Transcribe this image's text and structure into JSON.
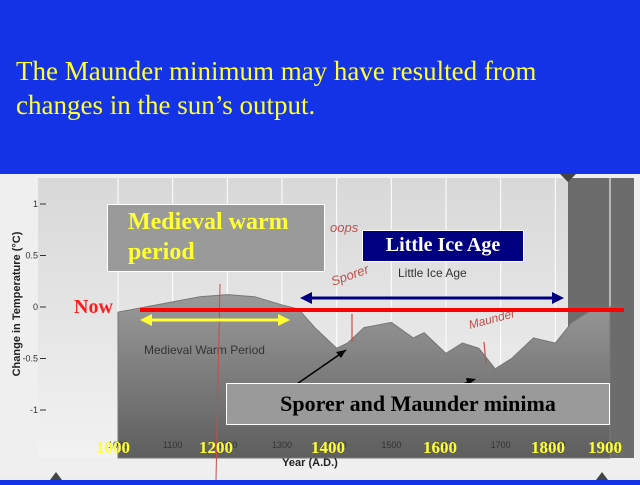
{
  "title_line1": "The Maunder minimum may have resulted from",
  "title_line2": "changes in the sun’s output.",
  "overlays": {
    "medieval_line1": "Medieval warm",
    "medieval_line2": "period",
    "little_ice_age": "Little Ice Age",
    "now": "Now",
    "minima": "Sporer and Maunder minima",
    "year_labels": [
      "1000",
      "1200",
      "1400",
      "1600",
      "1800",
      "1900"
    ]
  },
  "chart_data": {
    "type": "area",
    "xlabel": "Year (A.D.)",
    "ylabel": "Change in Temperature (°C)",
    "xlim": [
      1000,
      1900
    ],
    "ylim": [
      -1,
      1
    ],
    "x_ticks": [
      "1000",
      "1100",
      "1200",
      "1300",
      "1400",
      "1500",
      "1600",
      "1700",
      "1800",
      "1900"
    ],
    "y_ticks": [
      "1",
      "0.5",
      "0",
      "-0.5",
      "-1"
    ],
    "annotations": [
      "Little Ice Age",
      "Medieval Warm Period"
    ],
    "handwritten_notes": [
      "oops",
      "Sporer",
      "Maunder"
    ],
    "x": [
      1000,
      1050,
      1100,
      1150,
      1200,
      1250,
      1300,
      1330,
      1360,
      1400,
      1420,
      1450,
      1500,
      1540,
      1560,
      1600,
      1630,
      1660,
      1690,
      1720,
      1760,
      1800,
      1830,
      1860,
      1900
    ],
    "values": [
      -0.05,
      0.0,
      0.05,
      0.1,
      0.12,
      0.1,
      0.02,
      -0.02,
      -0.2,
      -0.4,
      -0.35,
      -0.2,
      -0.15,
      -0.3,
      -0.25,
      -0.45,
      -0.35,
      -0.4,
      -0.6,
      -0.5,
      -0.3,
      -0.35,
      -0.15,
      -0.05,
      0.0
    ],
    "colors": {
      "now_line": "#ff0000",
      "little_ice_age_arrow": "#000080",
      "medieval_arrow": "#ffff33"
    }
  }
}
